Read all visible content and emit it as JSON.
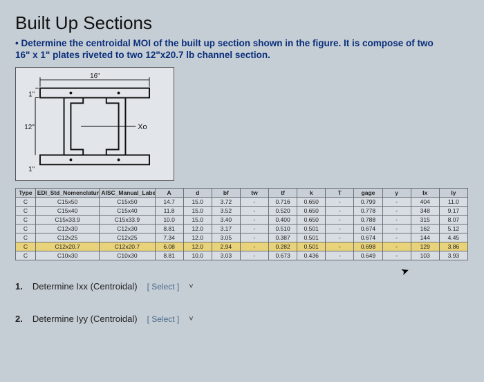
{
  "title": "Built Up Sections",
  "subtitle1": "• Determine the centroidal MOI of the built up section shown in the figure. It is compose of two",
  "subtitle2": "16\" x 1\" plates riveted to two 12\"x20.7 lb channel section.",
  "figure": {
    "labels": {
      "top": "16\"",
      "left_top": "1\"",
      "left_bot": "12\"",
      "bottom": "1\"",
      "axis": "Xo"
    }
  },
  "table": {
    "headers": [
      "Type",
      "EDI_Std_Nomenclature",
      "AISC_Manual_Label",
      "A",
      "d",
      "bf",
      "tw",
      "tf",
      "k",
      "T",
      "gage",
      "y",
      "Ix",
      "Iy"
    ],
    "rows": [
      {
        "sel": false,
        "cells": [
          "C",
          "C15x50",
          "C15x50",
          "14.7",
          "15.0",
          "3.72",
          "-",
          "0.716",
          "0.650",
          "-",
          "0.799",
          "-",
          "404",
          "11.0"
        ]
      },
      {
        "sel": false,
        "cells": [
          "C",
          "C15x40",
          "C15x40",
          "11.8",
          "15.0",
          "3.52",
          "-",
          "0.520",
          "0.650",
          "-",
          "0.778",
          "-",
          "348",
          "9.17"
        ]
      },
      {
        "sel": false,
        "cells": [
          "C",
          "C15x33.9",
          "C15x33.9",
          "10.0",
          "15.0",
          "3.40",
          "-",
          "0.400",
          "0.650",
          "-",
          "0.788",
          "-",
          "315",
          "8.07"
        ]
      },
      {
        "sel": false,
        "cells": [
          "C",
          "C12x30",
          "C12x30",
          "8.81",
          "12.0",
          "3.17",
          "-",
          "0.510",
          "0.501",
          "-",
          "0.674",
          "-",
          "162",
          "5.12"
        ]
      },
      {
        "sel": false,
        "cells": [
          "C",
          "C12x25",
          "C12x25",
          "7.34",
          "12.0",
          "3.05",
          "-",
          "0.387",
          "0.501",
          "-",
          "0.674",
          "-",
          "144",
          "4.45"
        ]
      },
      {
        "sel": true,
        "cells": [
          "C",
          "C12x20.7",
          "C12x20.7",
          "6.08",
          "12.0",
          "2.94",
          "-",
          "0.282",
          "0.501",
          "-",
          "0.698",
          "-",
          "129",
          "3.86"
        ]
      },
      {
        "sel": false,
        "cells": [
          "C",
          "C10x30",
          "C10x30",
          "8.81",
          "10.0",
          "3.03",
          "-",
          "0.673",
          "0.436",
          "-",
          "0.649",
          "-",
          "103",
          "3.93"
        ]
      }
    ]
  },
  "questions": {
    "q1": {
      "num": "1.",
      "text": "Determine Ixx (Centroidal)",
      "select": "[ Select ]"
    },
    "q2": {
      "num": "2.",
      "text": "Determine Iyy (Centroidal)",
      "select": "[ Select ]"
    }
  }
}
